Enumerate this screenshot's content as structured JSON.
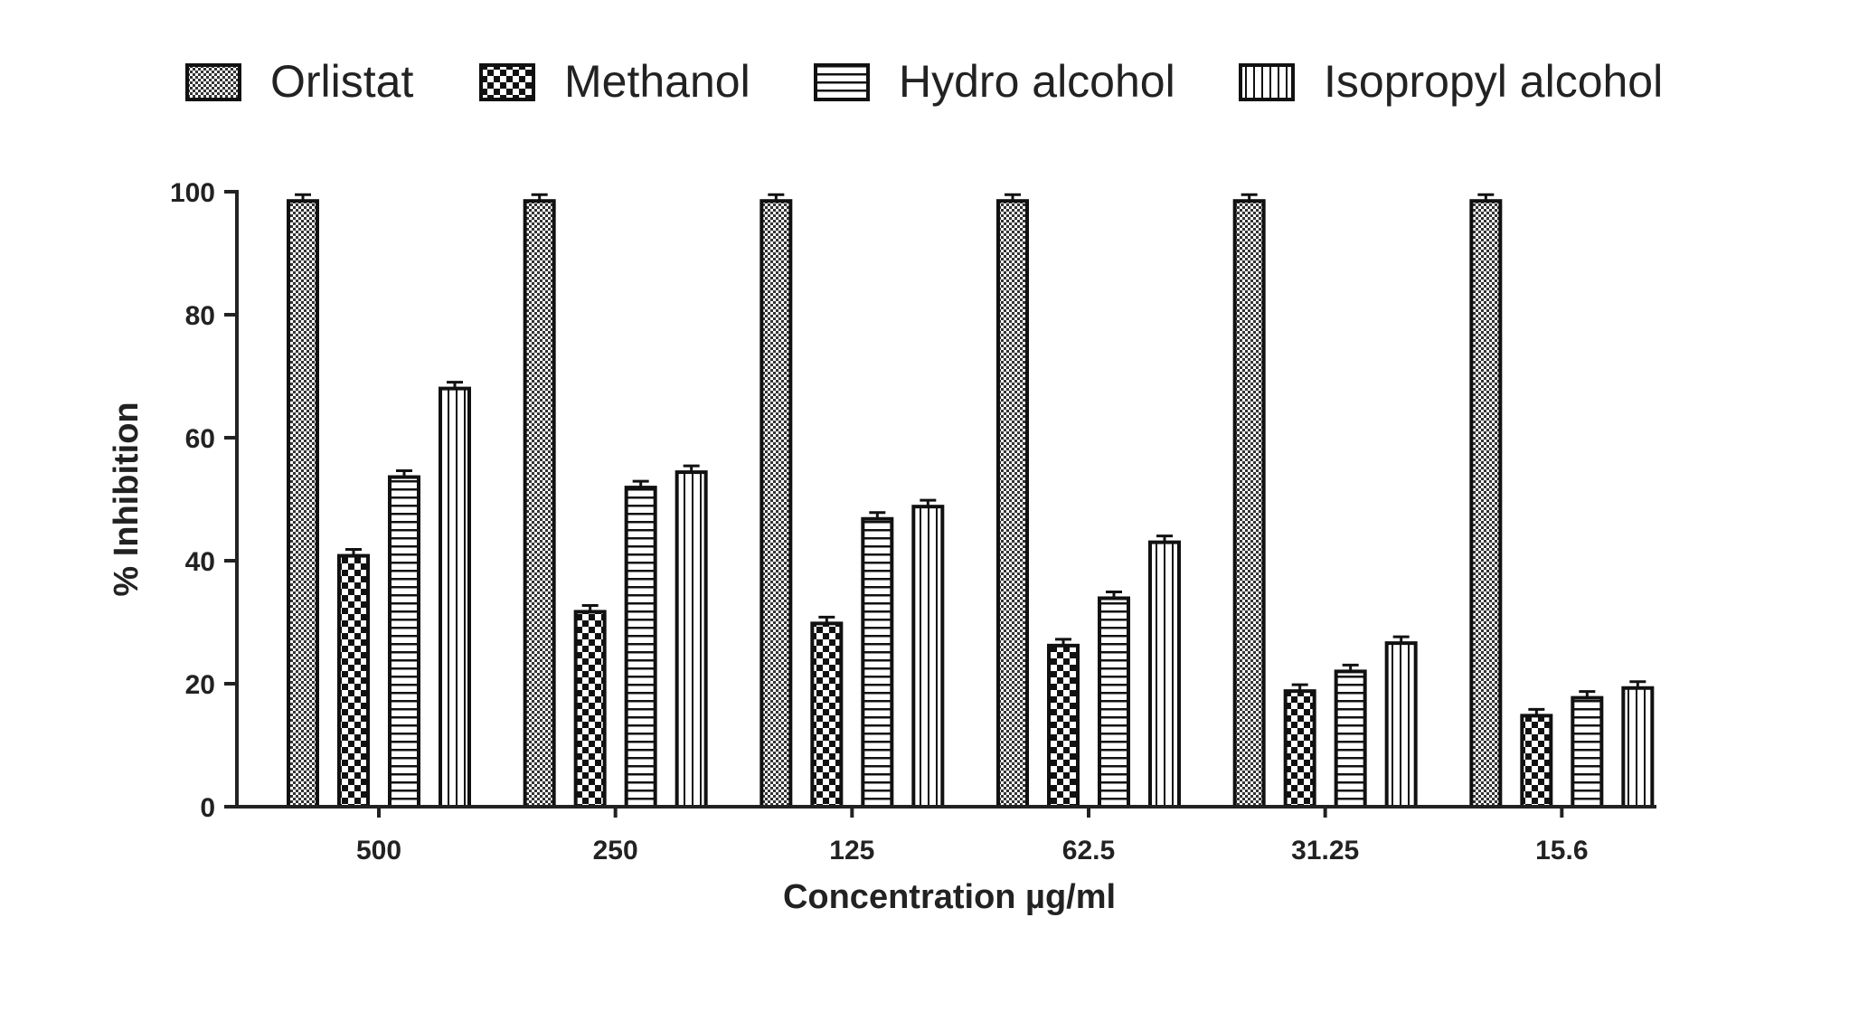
{
  "chart_data": {
    "type": "bar",
    "title": "",
    "xlabel": "Concentration µg/ml",
    "ylabel": "% Inhibition",
    "ylim": [
      0,
      100
    ],
    "yticks": [
      "0",
      "20",
      "40",
      "60",
      "80",
      "100"
    ],
    "categories": [
      "500",
      "250",
      "125",
      "62.5",
      "31.25",
      "15.6"
    ],
    "legend_position": "top",
    "grid": false,
    "error_bars": true,
    "series": [
      {
        "name": "Orlistat",
        "pattern": "dense-dots",
        "values": [
          98.5,
          98.5,
          98.5,
          98.5,
          98.5,
          98.5
        ]
      },
      {
        "name": "Methanol",
        "pattern": "checker",
        "values": [
          40.8,
          31.7,
          29.8,
          26.2,
          18.8,
          14.8
        ]
      },
      {
        "name": "Hydro alcohol",
        "pattern": "horizontal-lines",
        "values": [
          53.6,
          51.9,
          46.8,
          33.9,
          22.0,
          17.7
        ]
      },
      {
        "name": "Isopropyl alcohol",
        "pattern": "vertical-lines",
        "values": [
          68.0,
          54.4,
          48.8,
          43.0,
          26.6,
          19.3
        ]
      }
    ]
  }
}
